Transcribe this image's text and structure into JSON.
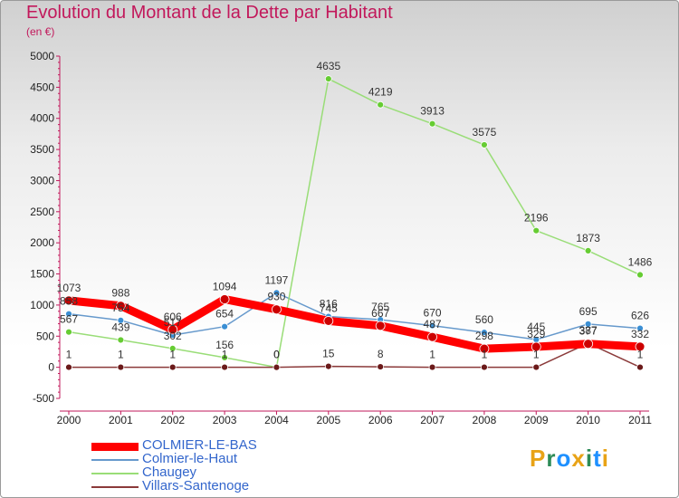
{
  "title": "Evolution du Montant de la Dette par Habitant",
  "unit_label": "(en €)",
  "logo": {
    "text": "Proxiti"
  },
  "chart_data": {
    "type": "line",
    "x": [
      "2000",
      "2001",
      "2002",
      "2003",
      "2004",
      "2005",
      "2006",
      "2007",
      "2008",
      "2009",
      "2010",
      "2011"
    ],
    "ylim": [
      -500,
      5000
    ],
    "yticks": [
      -500,
      0,
      500,
      1000,
      1500,
      2000,
      2500,
      3000,
      3500,
      4000,
      4500,
      5000
    ],
    "grid": false,
    "legend_position": "bottom-left",
    "series": [
      {
        "name": "Colmier-le-Haut",
        "color": "#6699cc",
        "marker": "#3b8fd4",
        "width": 1.5,
        "values": [
          858,
          754,
          517,
          654,
          1197,
          816,
          765,
          670,
          560,
          445,
          695,
          626
        ],
        "labels": [
          "858",
          "754",
          "517",
          "654",
          "1197",
          "816",
          "765",
          "670",
          "560",
          "445",
          "695",
          "626"
        ]
      },
      {
        "name": "Chaugey",
        "color": "#99dd77",
        "marker": "#66cc33",
        "width": 1.5,
        "values": [
          567,
          439,
          302,
          156,
          0,
          4635,
          4219,
          3913,
          3575,
          2196,
          1873,
          1486
        ],
        "labels": [
          "567",
          "439",
          "302",
          "156",
          "0",
          "4635",
          "4219",
          "3913",
          "3575",
          "2196",
          "1873",
          "1486"
        ]
      },
      {
        "name": "Villars-Santenoge",
        "color": "#8b3a3a",
        "marker": "#6b1a1a",
        "width": 1.5,
        "values": [
          1,
          1,
          1,
          1,
          0,
          15,
          8,
          1,
          1,
          1,
          387,
          1
        ],
        "labels": [
          "1",
          "1",
          "1",
          "1",
          "0",
          "15",
          "8",
          "1",
          "1",
          "1",
          "387",
          "1"
        ]
      },
      {
        "name": "COLMIER-LE-BAS",
        "color": "#ff0000",
        "marker": "#cc0000",
        "width": 9,
        "values": [
          1073,
          988,
          606,
          1094,
          930,
          745,
          667,
          487,
          298,
          329,
          377,
          332
        ],
        "labels": [
          "1073",
          "988",
          "606",
          "1094",
          "930",
          "745",
          "667",
          "487",
          "298",
          "329",
          "377",
          "332"
        ]
      }
    ],
    "legend_order": [
      "COLMIER-LE-BAS",
      "Colmier-le-Haut",
      "Chaugey",
      "Villars-Santenoge"
    ]
  }
}
